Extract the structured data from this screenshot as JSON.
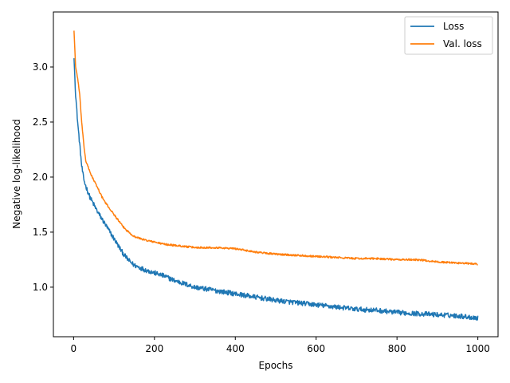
{
  "chart_data": {
    "type": "line",
    "title": "",
    "xlabel": "Epochs",
    "ylabel": "Negative log-likelihood",
    "xlim": [
      -50,
      1050
    ],
    "ylim": [
      0.55,
      3.5
    ],
    "xticks": [
      0,
      200,
      400,
      600,
      800,
      1000
    ],
    "xtick_labels": [
      "0",
      "200",
      "400",
      "600",
      "800",
      "1000"
    ],
    "yticks": [
      1.0,
      1.5,
      2.0,
      2.5,
      3.0
    ],
    "ytick_labels": [
      "1.0",
      "1.5",
      "2.0",
      "2.5",
      "3.0"
    ],
    "grid": false,
    "legend_position": "upper right",
    "series": [
      {
        "name": "Loss",
        "color": "#1f77b4",
        "noise": 0.022,
        "x": [
          1,
          5,
          10,
          15,
          20,
          25,
          30,
          40,
          50,
          60,
          70,
          80,
          90,
          100,
          110,
          120,
          130,
          140,
          150,
          175,
          200,
          225,
          250,
          275,
          300,
          350,
          400,
          450,
          500,
          550,
          600,
          650,
          700,
          750,
          800,
          850,
          900,
          950,
          1000
        ],
        "y": [
          3.08,
          2.75,
          2.5,
          2.3,
          2.1,
          1.98,
          1.92,
          1.82,
          1.75,
          1.68,
          1.62,
          1.56,
          1.5,
          1.44,
          1.38,
          1.32,
          1.27,
          1.23,
          1.2,
          1.16,
          1.13,
          1.1,
          1.06,
          1.03,
          1.0,
          0.97,
          0.94,
          0.91,
          0.88,
          0.86,
          0.84,
          0.82,
          0.8,
          0.79,
          0.77,
          0.76,
          0.75,
          0.74,
          0.72
        ]
      },
      {
        "name": "Val. loss",
        "color": "#ff7f0e",
        "noise": 0.008,
        "x": [
          1,
          5,
          10,
          15,
          20,
          25,
          30,
          40,
          50,
          60,
          70,
          80,
          90,
          100,
          110,
          120,
          130,
          140,
          150,
          175,
          200,
          225,
          250,
          275,
          300,
          350,
          400,
          450,
          500,
          550,
          600,
          650,
          700,
          750,
          800,
          850,
          900,
          950,
          1000
        ],
        "y": [
          3.33,
          3.0,
          2.9,
          2.75,
          2.5,
          2.3,
          2.15,
          2.05,
          1.97,
          1.9,
          1.82,
          1.76,
          1.71,
          1.66,
          1.61,
          1.56,
          1.52,
          1.49,
          1.46,
          1.43,
          1.41,
          1.39,
          1.38,
          1.37,
          1.36,
          1.36,
          1.35,
          1.32,
          1.3,
          1.29,
          1.28,
          1.27,
          1.26,
          1.26,
          1.25,
          1.25,
          1.23,
          1.22,
          1.21
        ]
      }
    ]
  }
}
